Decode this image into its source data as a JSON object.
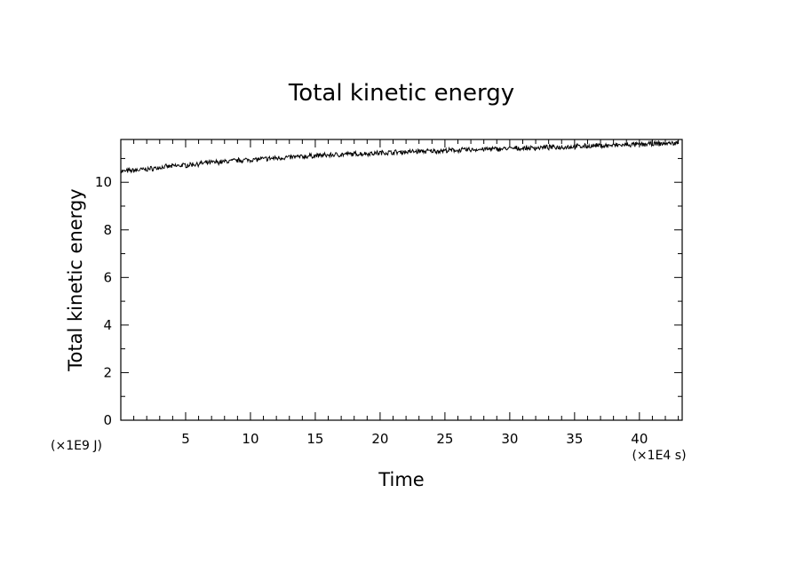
{
  "chart_data": {
    "type": "line",
    "title": "Total kinetic energy",
    "xlabel": "Time",
    "ylabel": "Total kinetic energy",
    "x_unit": "(×1E4 s)",
    "y_unit": "(×1E9 J)",
    "xlim": [
      0,
      43.3
    ],
    "ylim": [
      0,
      11.8
    ],
    "x_ticks": [
      5,
      10,
      15,
      20,
      25,
      30,
      35,
      40
    ],
    "y_ticks": [
      0,
      2,
      4,
      6,
      8,
      10
    ],
    "grid": false,
    "legend": "none",
    "series": [
      {
        "x": [
          0,
          1,
          2,
          3,
          4,
          5,
          6,
          7,
          8,
          9,
          10,
          11,
          12,
          13,
          14,
          15,
          16,
          17,
          18,
          19,
          20,
          21,
          22,
          23,
          24,
          25,
          26,
          27,
          28,
          29,
          30,
          31,
          32,
          33,
          34,
          35,
          36,
          37,
          38,
          39,
          40,
          41,
          42,
          43
        ],
        "values": [
          10.45,
          10.5,
          10.55,
          10.62,
          10.68,
          10.72,
          10.78,
          10.83,
          10.87,
          10.92,
          10.95,
          10.98,
          11.02,
          11.05,
          11.08,
          11.12,
          11.14,
          11.17,
          11.19,
          11.21,
          11.24,
          11.26,
          11.28,
          11.3,
          11.31,
          11.33,
          11.35,
          11.37,
          11.39,
          11.4,
          11.42,
          11.43,
          11.45,
          11.47,
          11.48,
          11.5,
          11.52,
          11.54,
          11.55,
          11.57,
          11.59,
          11.61,
          11.63,
          11.65
        ]
      }
    ]
  }
}
